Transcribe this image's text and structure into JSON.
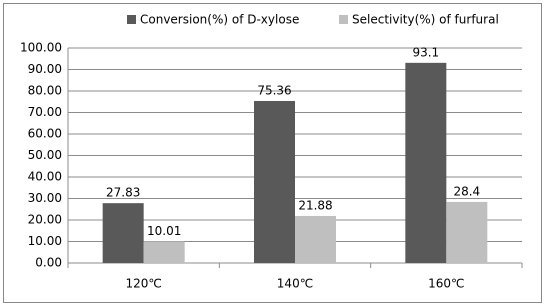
{
  "chart_data": {
    "type": "bar",
    "categories": [
      "120℃",
      "140℃",
      "160℃"
    ],
    "series": [
      {
        "name": "Conversion(%) of D-xylose",
        "color": "#595959",
        "values": [
          27.83,
          75.36,
          93.1
        ]
      },
      {
        "name": "Selectivity(%) of furfural",
        "color": "#bfbfbf",
        "values": [
          10.01,
          21.88,
          28.4
        ]
      }
    ],
    "ylim": [
      0,
      100
    ],
    "yticks": [
      {
        "value": 0,
        "label": "0.00"
      },
      {
        "value": 10,
        "label": "10.00"
      },
      {
        "value": 20,
        "label": "20.00"
      },
      {
        "value": 30,
        "label": "30.00"
      },
      {
        "value": 40,
        "label": "40.00"
      },
      {
        "value": 50,
        "label": "50.00"
      },
      {
        "value": 60,
        "label": "60.00"
      },
      {
        "value": 70,
        "label": "70.00"
      },
      {
        "value": 80,
        "label": "80.00"
      },
      {
        "value": 90,
        "label": "90.00"
      },
      {
        "value": 100,
        "label": "100.00"
      }
    ],
    "grid": true,
    "legend": "top"
  }
}
